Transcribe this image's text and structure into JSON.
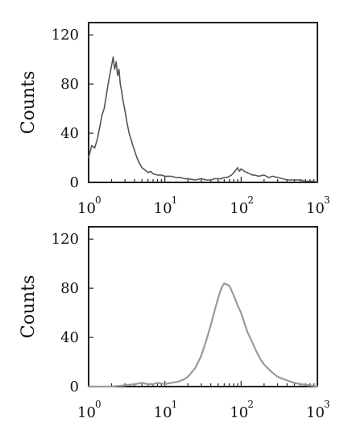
{
  "chart_data": [
    {
      "type": "line",
      "xscale": "log",
      "xlim": [
        1,
        1000
      ],
      "ylim": [
        0,
        130
      ],
      "ylabel": "Counts",
      "yticks": [
        "0",
        "40",
        "80",
        "120"
      ],
      "xticks": [
        {
          "base": "10",
          "exp": "0"
        },
        {
          "base": "10",
          "exp": "1"
        },
        {
          "base": "10",
          "exp": "2"
        },
        {
          "base": "10",
          "exp": "3"
        }
      ],
      "grid": false,
      "series": [
        {
          "color": "#555555",
          "x": [
            1.0,
            1.1,
            1.2,
            1.3,
            1.4,
            1.5,
            1.6,
            1.7,
            1.8,
            1.9,
            2.0,
            2.1,
            2.2,
            2.3,
            2.4,
            2.5,
            2.6,
            2.7,
            2.8,
            3.0,
            3.2,
            3.4,
            3.6,
            3.8,
            4.0,
            4.3,
            4.6,
            5.0,
            5.5,
            6.0,
            6.5,
            7.0,
            8.0,
            9.0,
            10.0,
            12.0,
            14.0,
            16.0,
            18.0,
            20.0,
            25.0,
            30.0,
            35.0,
            40.0,
            45.0,
            50.0,
            55.0,
            60.0,
            65.0,
            70.0,
            75.0,
            80.0,
            85.0,
            90.0,
            95.0,
            100.0,
            110.0,
            120.0,
            130.0,
            140.0,
            150.0,
            170.0,
            200.0,
            230.0,
            260.0,
            300.0,
            350.0,
            400.0,
            500.0,
            600.0,
            700.0,
            800.0,
            900.0,
            1000.0
          ],
          "y": [
            20,
            30,
            28,
            35,
            45,
            55,
            60,
            70,
            80,
            88,
            95,
            102,
            92,
            98,
            87,
            92,
            80,
            75,
            68,
            58,
            48,
            40,
            35,
            30,
            26,
            20,
            16,
            12,
            10,
            8,
            9,
            7,
            6,
            6,
            5,
            5,
            4,
            4,
            3,
            3,
            2,
            3,
            2,
            2,
            3,
            3,
            3,
            4,
            4,
            5,
            6,
            8,
            10,
            12,
            9,
            11,
            9,
            8,
            7,
            6,
            6,
            5,
            6,
            4,
            5,
            4,
            3,
            2,
            2,
            2,
            1,
            1,
            1,
            0
          ]
        }
      ]
    },
    {
      "type": "line",
      "xscale": "log",
      "xlim": [
        1,
        1000
      ],
      "ylim": [
        0,
        130
      ],
      "ylabel": "Counts",
      "yticks": [
        "0",
        "40",
        "80",
        "120"
      ],
      "xticks": [
        {
          "base": "10",
          "exp": "0"
        },
        {
          "base": "10",
          "exp": "1"
        },
        {
          "base": "10",
          "exp": "2"
        },
        {
          "base": "10",
          "exp": "3"
        }
      ],
      "grid": false,
      "series": [
        {
          "color": "#9a9a9a",
          "x": [
            1.0,
            2.0,
            3.0,
            4.0,
            5.0,
            6.0,
            7.0,
            8.0,
            10.0,
            12.0,
            15.0,
            18.0,
            20.0,
            25.0,
            30.0,
            35.0,
            40.0,
            45.0,
            50.0,
            55.0,
            60.0,
            65.0,
            70.0,
            75.0,
            80.0,
            85.0,
            90.0,
            100.0,
            110.0,
            120.0,
            140.0,
            160.0,
            180.0,
            200.0,
            250.0,
            300.0,
            400.0,
            500.0,
            600.0,
            800.0,
            1000.0
          ],
          "y": [
            0,
            0,
            1,
            2,
            3,
            2,
            2,
            3,
            2,
            3,
            4,
            6,
            8,
            15,
            25,
            38,
            50,
            62,
            72,
            80,
            84,
            83,
            82,
            78,
            74,
            70,
            66,
            60,
            52,
            45,
            36,
            28,
            22,
            18,
            12,
            8,
            5,
            3,
            2,
            1,
            0
          ]
        }
      ]
    }
  ]
}
